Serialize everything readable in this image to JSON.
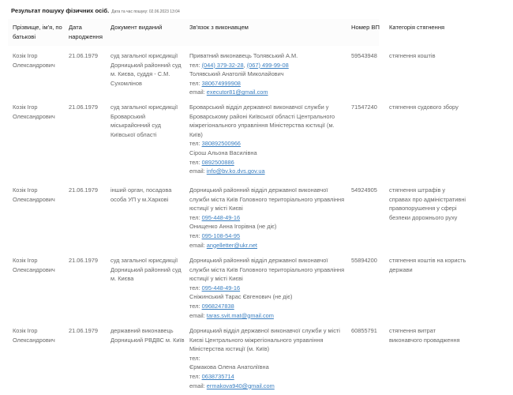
{
  "title": "Результат пошуку фізичних осіб.",
  "search_datetime": "Дата та час пошуку: 02.06.2023 13:04",
  "columns": [
    "Прізвище, ім'я, по батькові",
    "Дата народження",
    "Документ виданий",
    "Зв'язок з виконавцем",
    "Номер ВП",
    "Категорія стягнення"
  ],
  "rows": [
    {
      "name": "Козік Ігор Олександрович",
      "birth": "21.06.1979",
      "doc": "суд загальної юрисдикції Дорницький районний суд м. Києва, суддя - С.М. Сухомлінов",
      "contact": [
        {
          "text": "Приватний виконавець Толявський А.М."
        },
        {
          "text": "тел: ",
          "links": [
            "(044) 379-32-28",
            "(067) 499-99-08"
          ]
        },
        {
          "text": "Толявський Анатолій Миколайович"
        },
        {
          "text": "тел: ",
          "links": [
            "380674999908"
          ]
        },
        {
          "text": "email: ",
          "links": [
            "executor81@gmail.com"
          ]
        }
      ],
      "vp": "59543948",
      "category": "стягнення коштів"
    },
    {
      "name": "Козік Ігор Олександрович",
      "birth": "21.06.1979",
      "doc": "суд загальної юрисдикції Броварський міськрайонний суд Київської області",
      "contact": [
        {
          "text": "Броварський відділ державної виконавчої служби у Броварському районі Київської області Центрального міжрегіонального управління Міністерства юстиції (м. Київ)"
        },
        {
          "text": "тел: ",
          "links": [
            "380892500966"
          ]
        },
        {
          "text": "Сірош Альона Василівна"
        },
        {
          "text": "тел: ",
          "links": [
            "0892500886"
          ]
        },
        {
          "text": "email: ",
          "links": [
            "info@bv.ko.dvs.gov.ua"
          ]
        }
      ],
      "vp": "71547240",
      "category": "стягнення судового збору"
    },
    {
      "name": "Козік Ігор Олександрович",
      "birth": "21.06.1979",
      "doc": "інший орган, посадова особа УП у м.Харкові",
      "contact": [
        {
          "text": "Дорницький районний відділ державної виконавчої служби міста Київ Головного територіального управління юстиції у місті Києві"
        },
        {
          "text": "тел: ",
          "links": [
            "095-448-49-16"
          ]
        },
        {
          "text": "Онищенко Анна Ігорівна (не діє)"
        },
        {
          "text": "тел: ",
          "links": [
            "095-108-54-95"
          ]
        },
        {
          "text": "email: ",
          "links": [
            "angelletter@ukr.net"
          ]
        }
      ],
      "vp": "54924905",
      "category": "стягнення штрафів у справах про адміністративні правопорушення у сфері безпеки дорожнього руху"
    },
    {
      "name": "Козік Ігор Олександрович",
      "birth": "21.06.1979",
      "doc": "суд загальної юрисдикції Дорницький районний суд м. Києва",
      "contact": [
        {
          "text": "Дорницький районний відділ державної виконавчої служби міста Київ Головного територіального управління юстиції у місті Києві"
        },
        {
          "text": "тел: ",
          "links": [
            "095-448-49-16"
          ]
        },
        {
          "text": "Сніжинський Тарас Євгенович (не діє)"
        },
        {
          "text": "тел: ",
          "links": [
            "0968247838"
          ]
        },
        {
          "text": "email: ",
          "links": [
            "taras.svit.mat@gmail.com"
          ]
        }
      ],
      "vp": "55894200",
      "category": "стягнення коштів на користь держави"
    },
    {
      "name": "Козік Ігор Олександрович",
      "birth": "21.06.1979",
      "doc": "державний виконавець Дорницький РВДВС м. Київ",
      "contact": [
        {
          "text": "Дорницький відділ державної виконавчої служби у місті Києві Центрального міжрегіонального управління Міністерства юстиції (м. Київ)"
        },
        {
          "text": "тел: "
        },
        {
          "text": "Єрмакова Олена Анатоліївна"
        },
        {
          "text": "тел: ",
          "links": [
            "0638735714"
          ]
        },
        {
          "text": "email: ",
          "links": [
            "ermakova940@gmail.com"
          ]
        }
      ],
      "vp": "60855791",
      "category": "стягнення витрат виконавчого провадження"
    }
  ],
  "colors": {
    "link": "#3a7fc1",
    "text": "#666666",
    "heading": "#222222"
  }
}
